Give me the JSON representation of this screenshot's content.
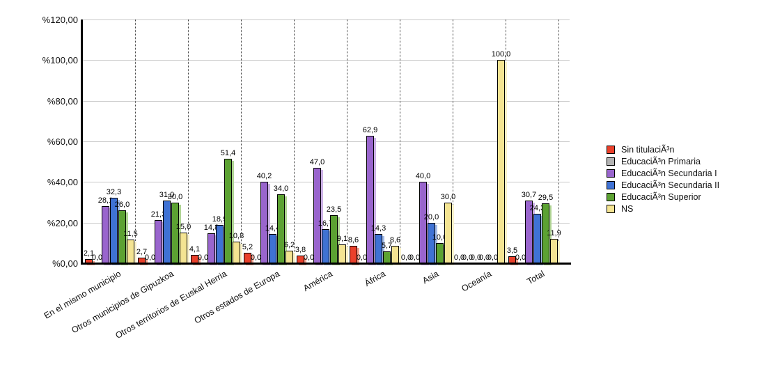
{
  "chart_data": {
    "type": "bar",
    "title": "",
    "xlabel": "",
    "ylabel": "",
    "ylim": [
      0,
      120
    ],
    "grid": true,
    "legend_position": "right",
    "y_ticks": [
      "%120,00",
      "%100,00",
      "%80,00",
      "%60,00",
      "%40,00",
      "%20,00",
      "%0,00"
    ],
    "categories": [
      "En el mismo municipio",
      "Otros municipios de Gipuzkoa",
      "Otros territorios de Euskal Herria",
      "Otros estados de Europa",
      "América",
      "África",
      "Asia",
      "Oceanía",
      "Total"
    ],
    "series": [
      {
        "name": "Sin titulaciÃ³n",
        "color": "#ea402b",
        "shadow_color": "#f5a593",
        "values": [
          2.1,
          2.7,
          4.1,
          5.2,
          3.8,
          8.6,
          0.0,
          0.0,
          3.5
        ],
        "labels": [
          "2,1",
          "2,7",
          "4,1",
          "5,2",
          "3,8",
          "8,6",
          "0,0",
          "0,0",
          "3,5"
        ]
      },
      {
        "name": "EducaciÃ³n Primaria",
        "color": "#b3b3b3",
        "shadow_color": "#dddddd",
        "values": [
          0.0,
          0.0,
          0.0,
          0.0,
          0.0,
          0.0,
          0.0,
          0.0,
          0.0
        ],
        "labels": [
          "0,0",
          "0,0",
          "0,0",
          "0,0",
          "0,0",
          "0,0",
          "0,0",
          "0,0",
          "0,0"
        ]
      },
      {
        "name": "EducaciÃ³n Secundaria I",
        "color": "#9965cd",
        "shadow_color": "#ccb2e6",
        "values": [
          28.1,
          21.3,
          14.8,
          40.2,
          47.0,
          62.9,
          40.0,
          0.0,
          30.7
        ],
        "labels": [
          "28,1",
          "21,3",
          "14,8",
          "40,2",
          "47,0",
          "62,9",
          "40,0",
          "0,0",
          "30,7"
        ]
      },
      {
        "name": "EducaciÃ³n Secundaria II",
        "color": "#3f72d4",
        "shadow_color": "#a5bdea",
        "values": [
          32.3,
          31.0,
          18.9,
          14.4,
          16.7,
          14.3,
          20.0,
          0.0,
          24.3
        ],
        "labels": [
          "32,3",
          "31,0",
          "18,9",
          "14,4",
          "16,7",
          "14,3",
          "20,0",
          "0,0",
          "24,3"
        ]
      },
      {
        "name": "EducaciÃ³n Superior",
        "color": "#5ca232",
        "shadow_color": "#b0d494",
        "values": [
          26.0,
          30.0,
          51.4,
          34.0,
          23.5,
          5.7,
          10.0,
          0.0,
          29.5
        ],
        "labels": [
          "26,0",
          "30,0",
          "51,4",
          "34,0",
          "23,5",
          "5,7",
          "10,0",
          "0,0",
          "29,5"
        ]
      },
      {
        "name": "NS",
        "color": "#f4e492",
        "shadow_color": "#faf2ca",
        "values": [
          11.5,
          15.0,
          10.8,
          6.2,
          9.1,
          8.6,
          30.0,
          100.0,
          11.9
        ],
        "labels": [
          "11,5",
          "15,0",
          "10,8",
          "6,2",
          "9,1",
          "8,6",
          "30,0",
          "100,0",
          "11,9"
        ]
      }
    ],
    "colors": {
      "background": "#ffffff",
      "gridline": "#c9c9c9",
      "axis": "#000000",
      "text": "#111111"
    }
  }
}
